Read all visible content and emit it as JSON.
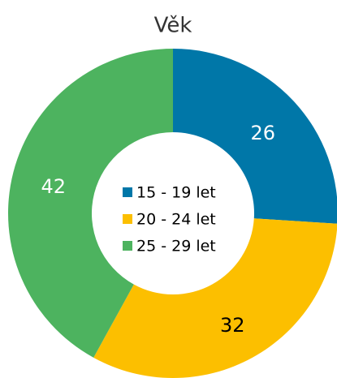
{
  "chart_data": {
    "type": "pie",
    "title": "Věk",
    "categories": [
      "15 - 19 let",
      "20 - 24 let",
      "25 - 29 let"
    ],
    "values": [
      26,
      32,
      42
    ],
    "colors": [
      "#0077a8",
      "#fcbf00",
      "#4db35f"
    ],
    "label_colors": [
      "#ffffff",
      "#000000",
      "#ffffff"
    ],
    "legend": "center"
  }
}
